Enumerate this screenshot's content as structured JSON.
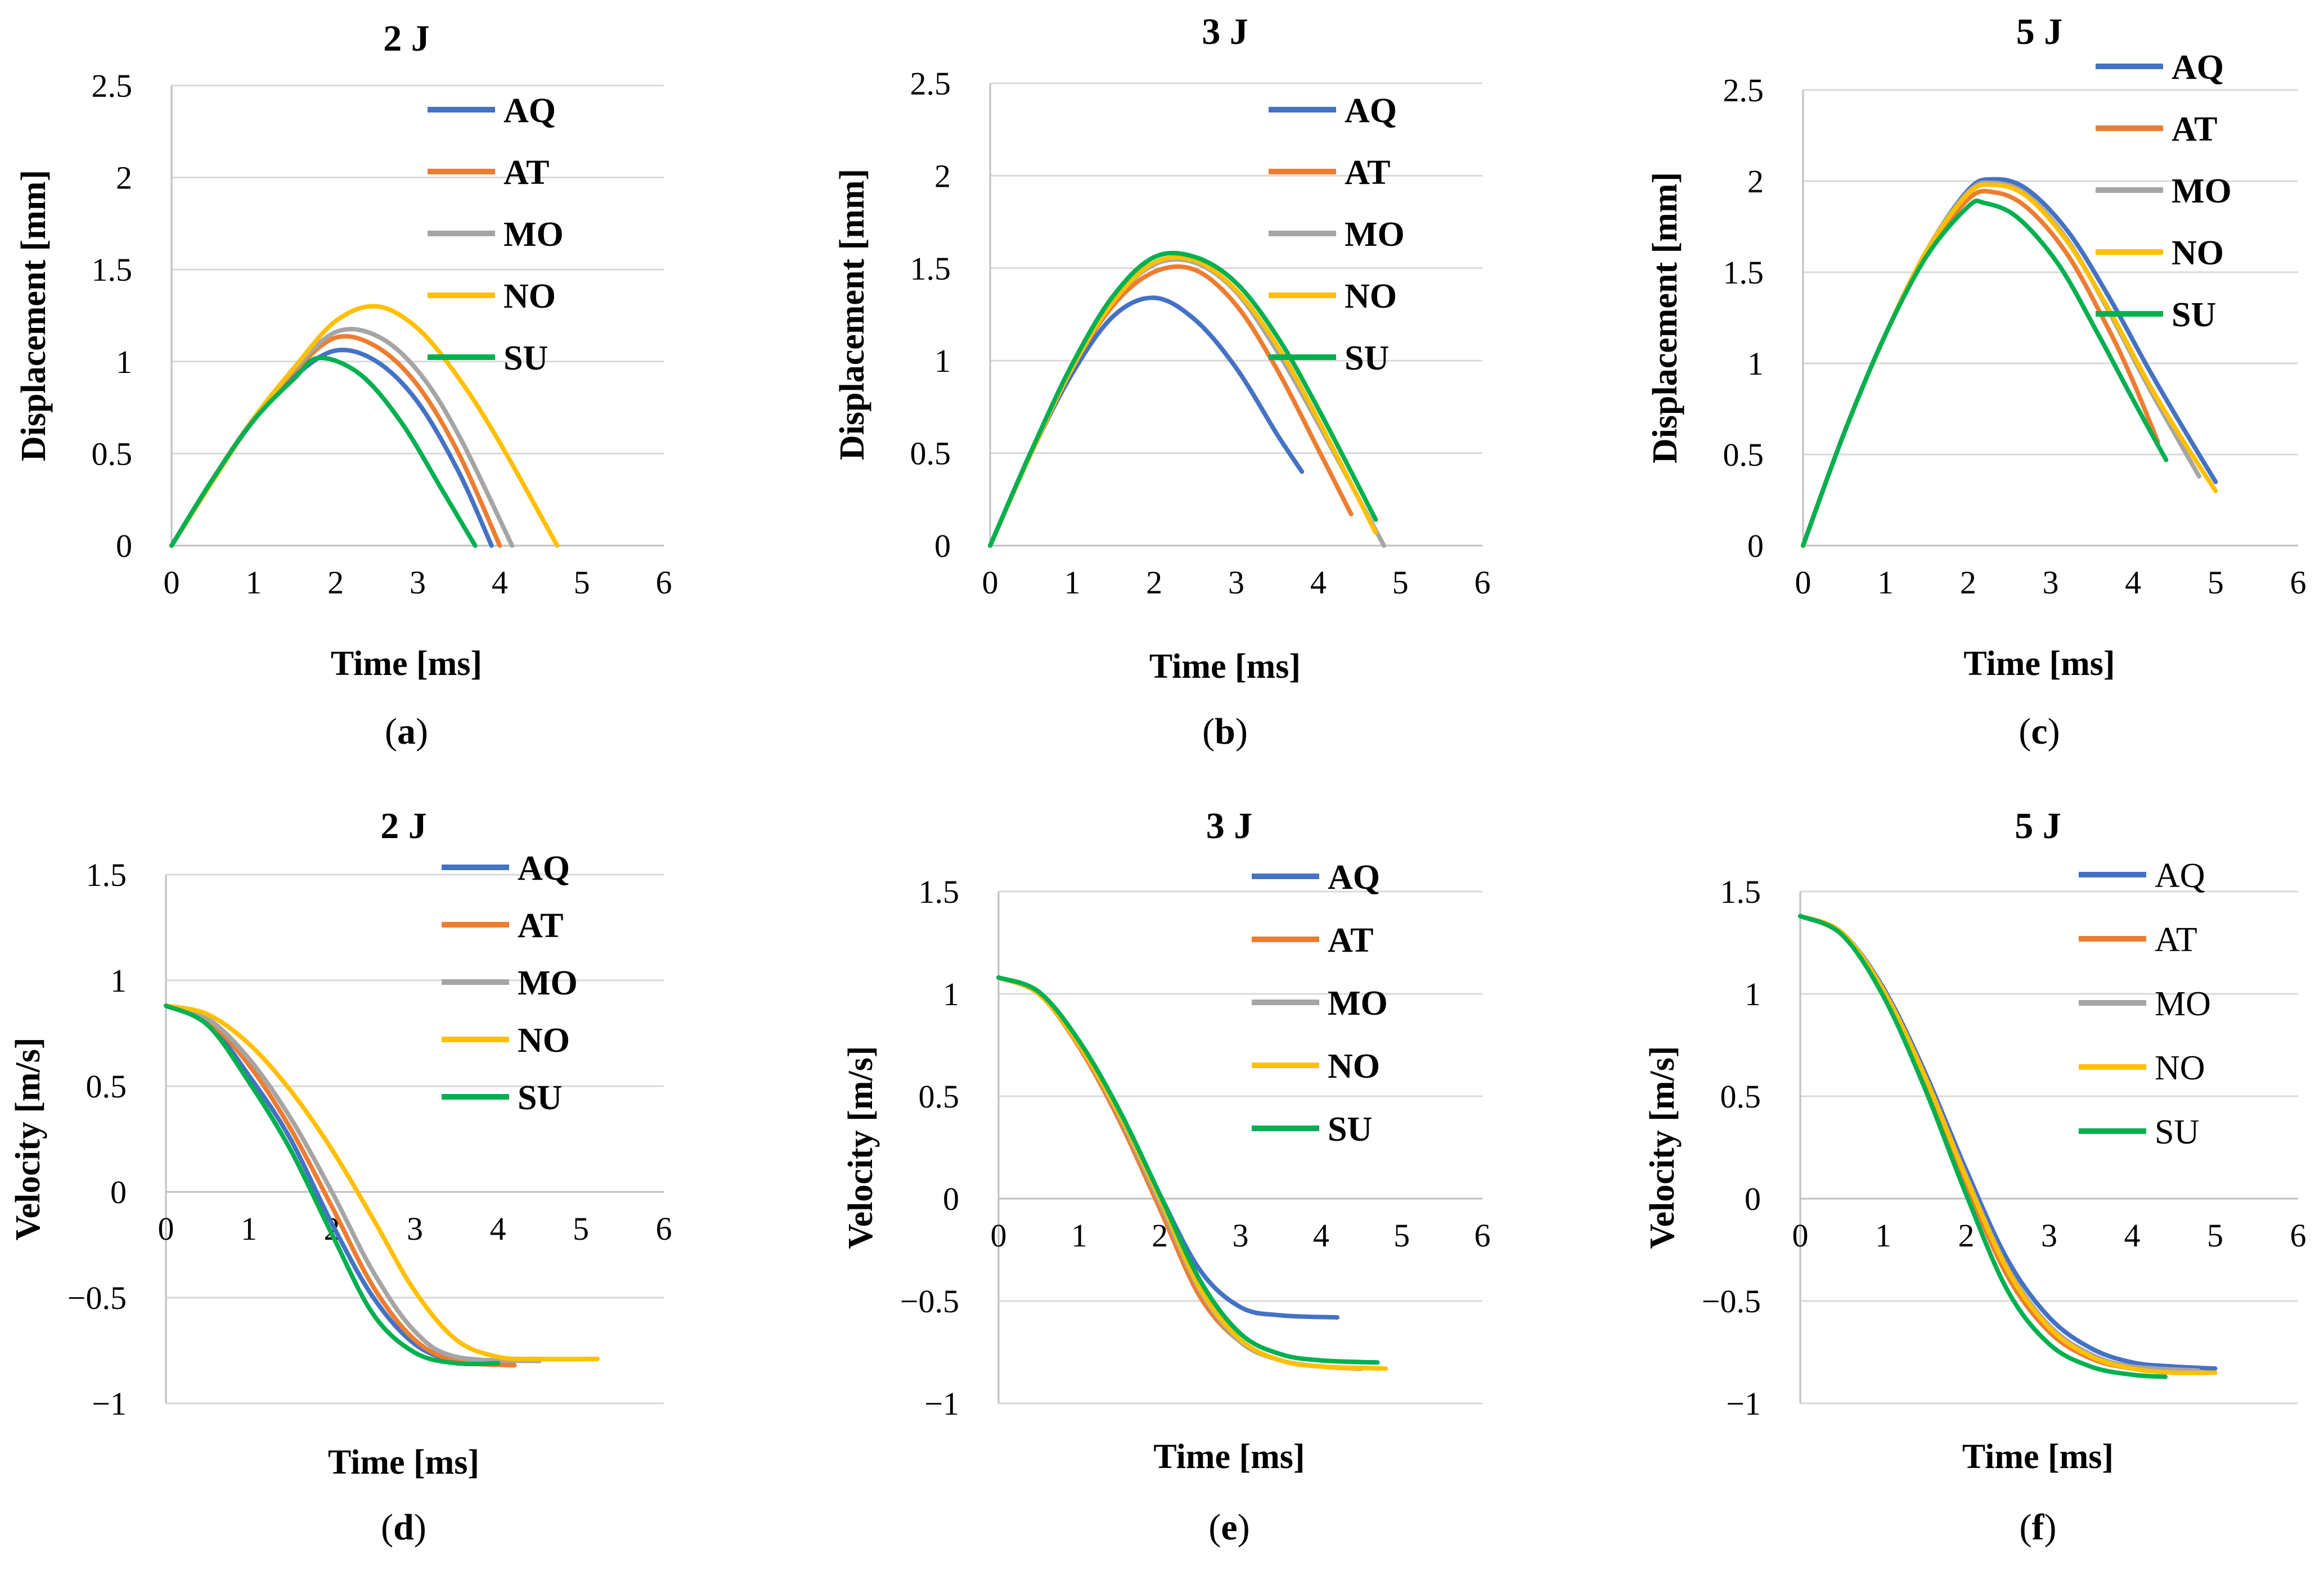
{
  "figure": {
    "panels": [
      "(a)",
      "(b)",
      "(c)",
      "(d)",
      "(e)",
      "(f)"
    ]
  },
  "colors": {
    "AQ": "#4472C4",
    "AT": "#ED7D31",
    "MO": "#A5A5A5",
    "NO": "#FFC000",
    "SU": "#00B050",
    "grid": "#D9D9D9",
    "axis": "#BFBFBF",
    "text": "#000000"
  },
  "chart_data": [
    {
      "id": "a",
      "type": "line",
      "panel_label": "(a)",
      "title": "2 J",
      "xlabel": "Time [ms]",
      "ylabel": "Displacement [mm]",
      "xlim": [
        0,
        6
      ],
      "ylim": [
        0,
        2.5
      ],
      "grid": "horizontal",
      "xticks": [
        "0",
        "1",
        "2",
        "3",
        "4",
        "5",
        "6"
      ],
      "yticks": [
        "0",
        "0.5",
        "1",
        "1.5",
        "2",
        "2.5"
      ],
      "legend_position": "top-right",
      "legend_bold": true,
      "series": [
        {
          "name": "AQ",
          "x": [
            0,
            0.5,
            1,
            1.5,
            2,
            2.5,
            3,
            3.5,
            3.9
          ],
          "y": [
            0,
            0.36,
            0.68,
            0.92,
            1.06,
            1.0,
            0.78,
            0.4,
            0
          ]
        },
        {
          "name": "AT",
          "x": [
            0,
            0.5,
            1,
            1.5,
            2,
            2.5,
            3,
            3.5,
            4.0
          ],
          "y": [
            0,
            0.36,
            0.69,
            0.95,
            1.13,
            1.08,
            0.87,
            0.5,
            0
          ]
        },
        {
          "name": "MO",
          "x": [
            0,
            0.5,
            1,
            1.5,
            2,
            2.5,
            3,
            3.5,
            4.15
          ],
          "y": [
            0,
            0.36,
            0.69,
            0.96,
            1.16,
            1.14,
            0.95,
            0.6,
            0
          ]
        },
        {
          "name": "NO",
          "x": [
            0,
            0.5,
            1,
            1.5,
            2,
            2.5,
            3,
            3.5,
            4,
            4.7
          ],
          "y": [
            0,
            0.35,
            0.69,
            0.97,
            1.22,
            1.3,
            1.18,
            0.91,
            0.56,
            0
          ]
        },
        {
          "name": "SU",
          "x": [
            0,
            0.5,
            1,
            1.5,
            1.8,
            2.3,
            2.8,
            3.3,
            3.7
          ],
          "y": [
            0,
            0.36,
            0.68,
            0.91,
            1.02,
            0.93,
            0.67,
            0.3,
            0
          ]
        }
      ]
    },
    {
      "id": "b",
      "type": "line",
      "panel_label": "(b)",
      "title": "3 J",
      "xlabel": "Time [ms]",
      "ylabel": "Displacement [mm]",
      "xlim": [
        0,
        6
      ],
      "ylim": [
        0,
        2.5
      ],
      "grid": "horizontal",
      "xticks": [
        "0",
        "1",
        "2",
        "3",
        "4",
        "5",
        "6"
      ],
      "yticks": [
        "0",
        "0.5",
        "1",
        "1.5",
        "2",
        "2.5"
      ],
      "legend_position": "top-right",
      "legend_bold": true,
      "series": [
        {
          "name": "AQ",
          "x": [
            0,
            0.5,
            1,
            1.5,
            2,
            2.5,
            3,
            3.5,
            3.8
          ],
          "y": [
            0,
            0.5,
            0.93,
            1.24,
            1.34,
            1.22,
            0.96,
            0.6,
            0.4
          ]
        },
        {
          "name": "AT",
          "x": [
            0,
            0.5,
            1,
            1.5,
            2,
            2.5,
            3,
            3.5,
            4,
            4.4
          ],
          "y": [
            0,
            0.5,
            0.96,
            1.3,
            1.48,
            1.49,
            1.3,
            0.95,
            0.52,
            0.17
          ]
        },
        {
          "name": "MO",
          "x": [
            0,
            0.5,
            1,
            1.5,
            2,
            2.5,
            3,
            3.5,
            4,
            4.8
          ],
          "y": [
            0,
            0.5,
            0.96,
            1.32,
            1.52,
            1.53,
            1.37,
            1.05,
            0.66,
            0
          ]
        },
        {
          "name": "NO",
          "x": [
            0,
            0.5,
            1,
            1.5,
            2,
            2.5,
            3,
            3.5,
            4,
            4.7
          ],
          "y": [
            0,
            0.5,
            0.96,
            1.32,
            1.53,
            1.54,
            1.38,
            1.08,
            0.68,
            0.07
          ]
        },
        {
          "name": "SU",
          "x": [
            0,
            0.5,
            1,
            1.5,
            2,
            2.5,
            3,
            3.5,
            4,
            4.7
          ],
          "y": [
            0,
            0.51,
            0.98,
            1.35,
            1.56,
            1.56,
            1.42,
            1.13,
            0.74,
            0.14
          ]
        }
      ]
    },
    {
      "id": "c",
      "type": "line",
      "panel_label": "(c)",
      "title": "5 J",
      "xlabel": "Time [ms]",
      "ylabel": "Displacement [mm]",
      "xlim": [
        0,
        6
      ],
      "ylim": [
        0,
        2.5
      ],
      "grid": "horizontal",
      "xticks": [
        "0",
        "1",
        "2",
        "3",
        "4",
        "5",
        "6"
      ],
      "yticks": [
        "0",
        "0.5",
        "1",
        "1.5",
        "2",
        "2.5"
      ],
      "legend_position": "top-right",
      "legend_bold": true,
      "series": [
        {
          "name": "AQ",
          "x": [
            0,
            0.5,
            1,
            1.5,
            2,
            2.3,
            2.7,
            3.2,
            3.7,
            4.2,
            4.6,
            5.0
          ],
          "y": [
            0,
            0.62,
            1.16,
            1.62,
            1.95,
            2.01,
            1.96,
            1.73,
            1.37,
            0.96,
            0.65,
            0.35
          ]
        },
        {
          "name": "AT",
          "x": [
            0,
            0.5,
            1,
            1.5,
            2,
            2.3,
            2.7,
            3.2,
            3.7,
            4.0,
            4.3
          ],
          "y": [
            0,
            0.62,
            1.16,
            1.6,
            1.9,
            1.94,
            1.86,
            1.6,
            1.19,
            0.9,
            0.57
          ]
        },
        {
          "name": "MO",
          "x": [
            0,
            0.5,
            1,
            1.5,
            2,
            2.3,
            2.7,
            3.2,
            3.7,
            4.2,
            4.8
          ],
          "y": [
            0,
            0.62,
            1.16,
            1.62,
            1.94,
            1.99,
            1.93,
            1.68,
            1.29,
            0.86,
            0.38
          ]
        },
        {
          "name": "NO",
          "x": [
            0,
            0.5,
            1,
            1.5,
            2,
            2.3,
            2.7,
            3.2,
            3.7,
            4.2,
            4.6,
            5.0
          ],
          "y": [
            0,
            0.62,
            1.16,
            1.62,
            1.93,
            1.98,
            1.92,
            1.67,
            1.3,
            0.88,
            0.58,
            0.3
          ]
        },
        {
          "name": "SU",
          "x": [
            0,
            0.5,
            1,
            1.5,
            2,
            2.2,
            2.6,
            3.1,
            3.6,
            4.0,
            4.4
          ],
          "y": [
            0,
            0.62,
            1.16,
            1.59,
            1.86,
            1.88,
            1.8,
            1.54,
            1.14,
            0.8,
            0.47
          ]
        }
      ]
    },
    {
      "id": "d",
      "type": "line",
      "panel_label": "(d)",
      "title": "2 J",
      "xlabel": "Time [ms]",
      "ylabel": "Velocity [m/s]",
      "xlim": [
        0,
        6
      ],
      "ylim": [
        -1,
        1.5
      ],
      "grid": "horizontal",
      "xticks": [
        "0",
        "1",
        "2",
        "3",
        "4",
        "5",
        "6"
      ],
      "yticks": [
        "−1",
        "−0.5",
        "0",
        "0.5",
        "1",
        "1.5"
      ],
      "legend_position": "top-right",
      "legend_bold": true,
      "series": [
        {
          "name": "AQ",
          "x": [
            0,
            0.5,
            1,
            1.5,
            2,
            2.5,
            3,
            3.5,
            4.0
          ],
          "y": [
            0.88,
            0.8,
            0.55,
            0.25,
            -0.15,
            -0.5,
            -0.72,
            -0.8,
            -0.8
          ]
        },
        {
          "name": "AT",
          "x": [
            0,
            0.5,
            1,
            1.5,
            2,
            2.5,
            3,
            3.5,
            4.2
          ],
          "y": [
            0.88,
            0.81,
            0.6,
            0.3,
            -0.07,
            -0.45,
            -0.7,
            -0.8,
            -0.82
          ]
        },
        {
          "name": "MO",
          "x": [
            0,
            0.5,
            1,
            1.5,
            2,
            2.5,
            3,
            3.5,
            4.5
          ],
          "y": [
            0.88,
            0.82,
            0.63,
            0.35,
            0.0,
            -0.38,
            -0.66,
            -0.78,
            -0.8
          ]
        },
        {
          "name": "NO",
          "x": [
            0,
            0.5,
            1,
            1.5,
            2,
            2.5,
            3,
            3.5,
            4,
            4.5,
            5.2
          ],
          "y": [
            0.88,
            0.84,
            0.7,
            0.48,
            0.2,
            -0.13,
            -0.47,
            -0.7,
            -0.78,
            -0.79,
            -0.79
          ]
        },
        {
          "name": "SU",
          "x": [
            0,
            0.5,
            1,
            1.5,
            2,
            2.5,
            3,
            3.5,
            4.0
          ],
          "y": [
            0.88,
            0.79,
            0.52,
            0.2,
            -0.2,
            -0.58,
            -0.76,
            -0.81,
            -0.81
          ]
        }
      ]
    },
    {
      "id": "e",
      "type": "line",
      "panel_label": "(e)",
      "title": "3 J",
      "xlabel": "Time [ms]",
      "ylabel": "Velocity [m/s]",
      "xlim": [
        0,
        6
      ],
      "ylim": [
        -1,
        1.5
      ],
      "grid": "horizontal",
      "xticks": [
        "0",
        "1",
        "2",
        "3",
        "4",
        "5",
        "6"
      ],
      "yticks": [
        "−1",
        "−0.5",
        "0",
        "0.5",
        "1",
        "1.5"
      ],
      "legend_position": "top-right",
      "legend_bold": true,
      "series": [
        {
          "name": "AQ",
          "x": [
            0,
            0.5,
            1,
            1.5,
            2,
            2.5,
            3,
            3.5,
            4.2
          ],
          "y": [
            1.08,
            1.0,
            0.76,
            0.42,
            0.02,
            -0.35,
            -0.53,
            -0.57,
            -0.58
          ]
        },
        {
          "name": "AT",
          "x": [
            0,
            0.5,
            1,
            1.5,
            2,
            2.5,
            3,
            3.5,
            4,
            4.5
          ],
          "y": [
            1.08,
            1.0,
            0.74,
            0.38,
            -0.05,
            -0.48,
            -0.7,
            -0.79,
            -0.82,
            -0.83
          ]
        },
        {
          "name": "MO",
          "x": [
            0,
            0.5,
            1,
            1.5,
            2,
            2.5,
            3,
            3.5,
            4,
            4.8
          ],
          "y": [
            1.08,
            1.0,
            0.75,
            0.4,
            -0.02,
            -0.45,
            -0.7,
            -0.79,
            -0.82,
            -0.83
          ]
        },
        {
          "name": "NO",
          "x": [
            0,
            0.5,
            1,
            1.5,
            2,
            2.5,
            3,
            3.5,
            4,
            4.8
          ],
          "y": [
            1.08,
            1.0,
            0.75,
            0.41,
            0.0,
            -0.44,
            -0.69,
            -0.79,
            -0.82,
            -0.83
          ]
        },
        {
          "name": "SU",
          "x": [
            0,
            0.5,
            1,
            1.5,
            2,
            2.5,
            3,
            3.5,
            4,
            4.7
          ],
          "y": [
            1.08,
            1.01,
            0.77,
            0.43,
            0.02,
            -0.4,
            -0.66,
            -0.76,
            -0.79,
            -0.8
          ]
        }
      ]
    },
    {
      "id": "f",
      "type": "line",
      "panel_label": "(f)",
      "title": "5 J",
      "xlabel": "Time [ms]",
      "ylabel": "Velocity [m/s]",
      "xlim": [
        0,
        6
      ],
      "ylim": [
        -1,
        1.5
      ],
      "grid": "horizontal",
      "xticks": [
        "0",
        "1",
        "2",
        "3",
        "4",
        "5",
        "6"
      ],
      "yticks": [
        "−1",
        "−0.5",
        "0",
        "0.5",
        "1",
        "1.5"
      ],
      "legend_position": "top-right",
      "legend_bold": false,
      "series": [
        {
          "name": "AQ",
          "x": [
            0,
            0.5,
            1,
            1.5,
            2,
            2.5,
            3,
            3.5,
            4,
            4.5,
            5.0
          ],
          "y": [
            1.38,
            1.3,
            1.03,
            0.62,
            0.14,
            -0.3,
            -0.58,
            -0.73,
            -0.8,
            -0.82,
            -0.83
          ]
        },
        {
          "name": "AT",
          "x": [
            0,
            0.5,
            1,
            1.5,
            2,
            2.5,
            3,
            3.5,
            4,
            4.6
          ],
          "y": [
            1.38,
            1.29,
            1.0,
            0.57,
            0.07,
            -0.38,
            -0.65,
            -0.78,
            -0.83,
            -0.85
          ]
        },
        {
          "name": "MO",
          "x": [
            0,
            0.5,
            1,
            1.5,
            2,
            2.5,
            3,
            3.5,
            4,
            4.8
          ],
          "y": [
            1.38,
            1.3,
            1.02,
            0.6,
            0.11,
            -0.34,
            -0.62,
            -0.76,
            -0.82,
            -0.84
          ]
        },
        {
          "name": "NO",
          "x": [
            0,
            0.5,
            1,
            1.5,
            2,
            2.5,
            3,
            3.5,
            4,
            4.5,
            5.0
          ],
          "y": [
            1.38,
            1.3,
            1.02,
            0.6,
            0.1,
            -0.35,
            -0.63,
            -0.77,
            -0.83,
            -0.85,
            -0.85
          ]
        },
        {
          "name": "SU",
          "x": [
            0,
            0.5,
            1,
            1.5,
            2,
            2.5,
            3,
            3.5,
            4,
            4.4
          ],
          "y": [
            1.38,
            1.29,
            0.99,
            0.54,
            0.02,
            -0.45,
            -0.71,
            -0.82,
            -0.86,
            -0.87
          ]
        }
      ]
    }
  ]
}
